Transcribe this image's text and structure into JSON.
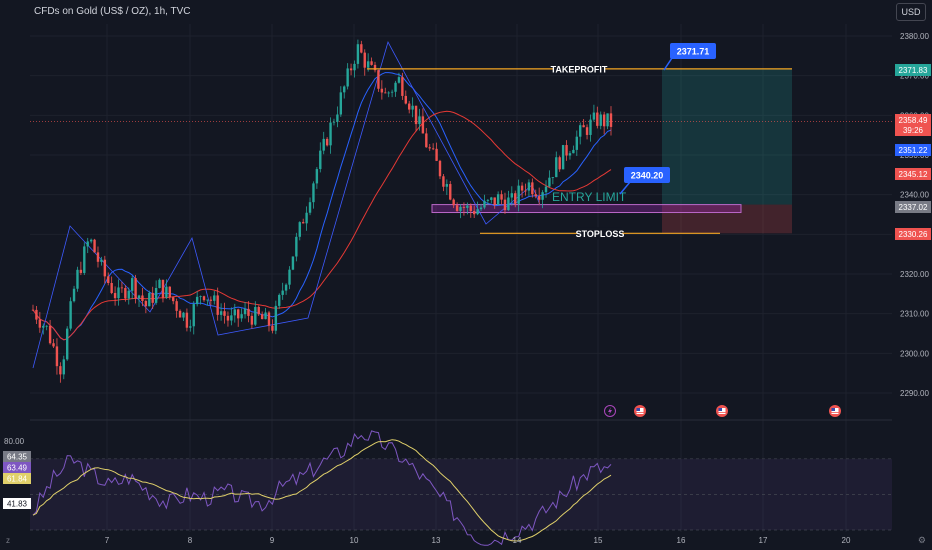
{
  "header": {
    "symbol": "CFDs on Gold (US$ / OZ), 1h, TVC",
    "currency_button": "USD"
  },
  "colors": {
    "bg": "#131722",
    "up": "#26a69a",
    "down": "#ef5350",
    "blue_ma": "#2962ff",
    "red_ma": "#e53935",
    "rsi": "#7e57c2",
    "rsi_ma": "#e0d06a",
    "tp_line": "#f5a623"
  },
  "chart_data": [
    {
      "type": "candlestick",
      "title": "CFDs on Gold (US$ / OZ), 1h, TVC",
      "ylim": [
        2285,
        2385
      ],
      "y_ticks": [
        "2380.00",
        "2370.00",
        "2360.00",
        "2350.00",
        "2340.00",
        "2330.00",
        "2320.00",
        "2310.00",
        "2300.00",
        "2290.00"
      ],
      "x_ticks": [
        "7",
        "8",
        "9",
        "10",
        "13",
        "14",
        "15",
        "16",
        "17",
        "20"
      ],
      "price_tags": [
        {
          "label": "2371.83",
          "color": "#26a69a"
        },
        {
          "label": "2358.49",
          "sub": "39:26",
          "color": "#ef5350"
        },
        {
          "label": "2351.22",
          "color": "#2962ff"
        },
        {
          "label": "2345.12",
          "color": "#ef5350"
        },
        {
          "label": "2337.02",
          "color": "#787b86"
        },
        {
          "label": "2330.26",
          "color": "#ef5350"
        }
      ],
      "annotations": {
        "takeprofit_label": "TAKEPROFIT",
        "takeprofit_callout": "2371.71",
        "entry_label": "ENTRY LIMIT",
        "entry_callout": "2340.20",
        "stoploss_label": "STOPLOSS"
      },
      "levels": {
        "takeprofit": 2371.71,
        "entry": 2340.2,
        "stoploss": 2330.26,
        "entry_zone": [
          2335.5,
          2337.5
        ],
        "last": 2358.49
      },
      "key_prices": [
        2311,
        2306,
        2296,
        2318,
        2329,
        2320,
        2314,
        2318,
        2312,
        2317,
        2313,
        2308,
        2316,
        2312,
        2308,
        2310,
        2309,
        2307,
        2320,
        2332,
        2345,
        2356,
        2366,
        2377,
        2371,
        2365,
        2369,
        2361,
        2352,
        2345,
        2338,
        2336,
        2337,
        2339,
        2338,
        2343,
        2341,
        2347,
        2352,
        2356,
        2359,
        2358
      ]
    },
    {
      "type": "line",
      "title": "RSI",
      "ylim": [
        20,
        90
      ],
      "y_ticks": [
        "80.00"
      ],
      "tags": [
        {
          "label": "64.35",
          "color": "#787b86"
        },
        {
          "label": "63.49",
          "color": "#7e57c2"
        },
        {
          "label": "61.84",
          "color": "#e0d06a"
        },
        {
          "label": "41.83",
          "color": "#131722"
        }
      ],
      "key_values": [
        40,
        58,
        70,
        62,
        55,
        60,
        52,
        45,
        50,
        48,
        52,
        47,
        45,
        55,
        60,
        68,
        74,
        85,
        80,
        72,
        62,
        50,
        38,
        26,
        25,
        30,
        35,
        45,
        55,
        64,
        65
      ]
    }
  ],
  "event_icons": [
    "lightning-icon",
    "us-flag-icon",
    "us-flag-icon",
    "us-flag-icon"
  ]
}
